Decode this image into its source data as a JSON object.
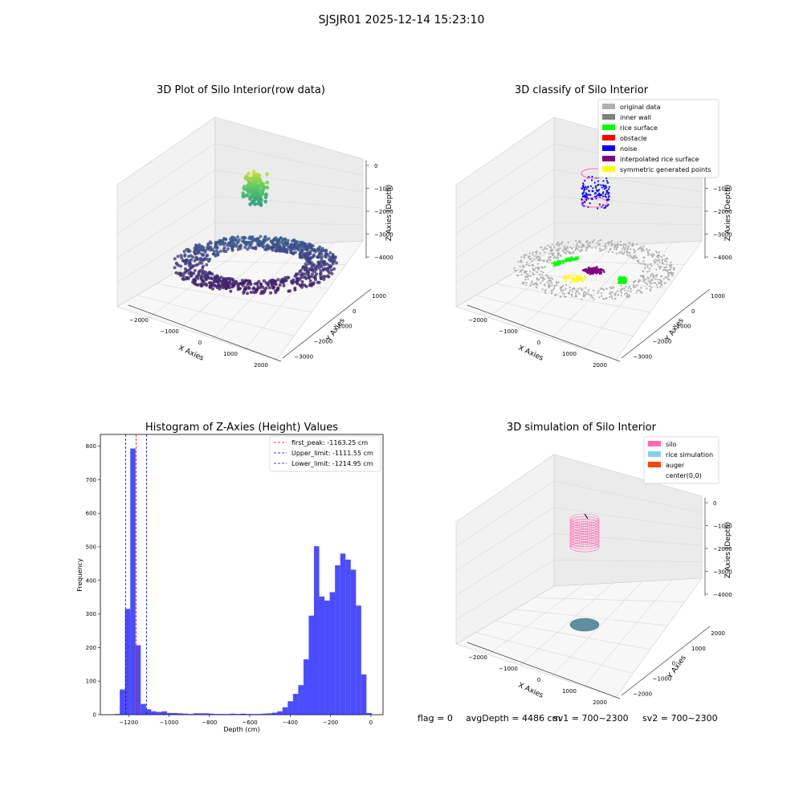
{
  "page": {
    "title": "SJSJR01 2025-12-14 15:23:10",
    "footer": {
      "flag": "flag = 0",
      "avg_depth": "avgDepth = 4486 cm",
      "sv1": "sv1 = 700~2300",
      "sv2": "sv2 = 700~2300"
    }
  },
  "chart_data": [
    {
      "type": "scatter",
      "title": "3D Plot of Silo Interior(row data)",
      "xlabel": "X Axies",
      "ylabel": "Y Axies",
      "zlabel": "Z Axies (Depth)",
      "x_ticks": [
        "−2000",
        "−1000",
        "0",
        "1000",
        "2000"
      ],
      "y_ticks": [
        "1000",
        "0",
        "−1000",
        "−2000",
        "−3000"
      ],
      "z_ticks": [
        "0",
        "−1000",
        "−2000",
        "−3000",
        "−4000"
      ],
      "colormap": "viridis"
    },
    {
      "type": "scatter",
      "title": "3D classify of Silo Interior",
      "xlabel": "X Axies",
      "ylabel": "Y Axies",
      "zlabel": "Z Axies (Depth)",
      "x_ticks": [
        "−2000",
        "−1000",
        "0",
        "1000",
        "2000"
      ],
      "y_ticks": [
        "1000",
        "0",
        "−1000",
        "−2000",
        "−3000"
      ],
      "z_ticks": [
        "0",
        "−1000",
        "−2000",
        "−3000",
        "−4000"
      ],
      "legend": [
        {
          "label": "original data",
          "color": "#b0b0b0"
        },
        {
          "label": "inner wall",
          "color": "#808080"
        },
        {
          "label": "rice surface",
          "color": "#00ff00"
        },
        {
          "label": "obstacle",
          "color": "#ff0000"
        },
        {
          "label": "noise",
          "color": "#0000ff"
        },
        {
          "label": "interpolated rice surface",
          "color": "#800080"
        },
        {
          "label": "symmetric generated points",
          "color": "#ffff00"
        }
      ],
      "legend_position": "top-right"
    },
    {
      "type": "bar",
      "title": "Histogram of Z-Axies (Height) Values",
      "xlabel": "Depth (cm)",
      "ylabel": "Frequency",
      "xlim": [
        -1340,
        60
      ],
      "ylim": [
        0,
        835
      ],
      "x_ticks": [
        -1200,
        -1000,
        -800,
        -600,
        -400,
        -200,
        0
      ],
      "y_ticks": [
        0,
        100,
        200,
        300,
        400,
        500,
        600,
        700,
        800
      ],
      "bin_width": 26,
      "bin_starts": [
        -1270,
        -1244,
        -1218,
        -1192,
        -1166,
        -1140,
        -1114,
        -1088,
        -1062,
        -1036,
        -1010,
        -984,
        -958,
        -932,
        -906,
        -880,
        -854,
        -828,
        -802,
        -776,
        -750,
        -724,
        -698,
        -672,
        -646,
        -620,
        -594,
        -568,
        -542,
        -516,
        -490,
        -464,
        -438,
        -412,
        -386,
        -360,
        -334,
        -308,
        -282,
        -256,
        -230,
        -204,
        -178,
        -152,
        -126,
        -100,
        -74,
        -48,
        -22
      ],
      "counts": [
        2,
        75,
        315,
        793,
        207,
        32,
        16,
        10,
        8,
        10,
        5,
        5,
        4,
        3,
        2,
        4,
        4,
        4,
        3,
        2,
        2,
        2,
        3,
        2,
        3,
        2,
        2,
        2,
        3,
        4,
        6,
        10,
        22,
        40,
        62,
        88,
        165,
        295,
        502,
        352,
        340,
        365,
        445,
        480,
        462,
        432,
        325,
        120,
        5
      ],
      "reference_lines": [
        {
          "label": "first_peak: -1163.25 cm",
          "value": -1163.25,
          "color": "#ff0000"
        },
        {
          "label": "Upper_limit: -1111.55 cm",
          "value": -1111.55,
          "color": "#0000cc"
        },
        {
          "label": "Lower_limit: -1214.95 cm",
          "value": -1214.95,
          "color": "#0000cc"
        }
      ],
      "bar_color": "#0000ff",
      "legend_position": "top-right"
    },
    {
      "type": "scatter",
      "title": "3D simulation of Silo Interior",
      "xlabel": "X Axies",
      "ylabel": "Y Axies",
      "zlabel": "Z Axies (Depth)",
      "x_ticks": [
        "−2000",
        "−1000",
        "0",
        "1000",
        "2000"
      ],
      "y_ticks": [
        "2000",
        "1000",
        "0",
        "−1000",
        "−2000"
      ],
      "z_ticks": [
        "0",
        "−1000",
        "−2000",
        "−3000",
        "−4000"
      ],
      "legend": [
        {
          "label": "silo",
          "color": "#ff69b4"
        },
        {
          "label": "rice simulation",
          "color": "#87ceeb"
        },
        {
          "label": "auger",
          "color": "#ff4500"
        },
        {
          "label": "center(0,0)",
          "color": "#ffffff"
        }
      ],
      "legend_position": "top-right"
    }
  ]
}
